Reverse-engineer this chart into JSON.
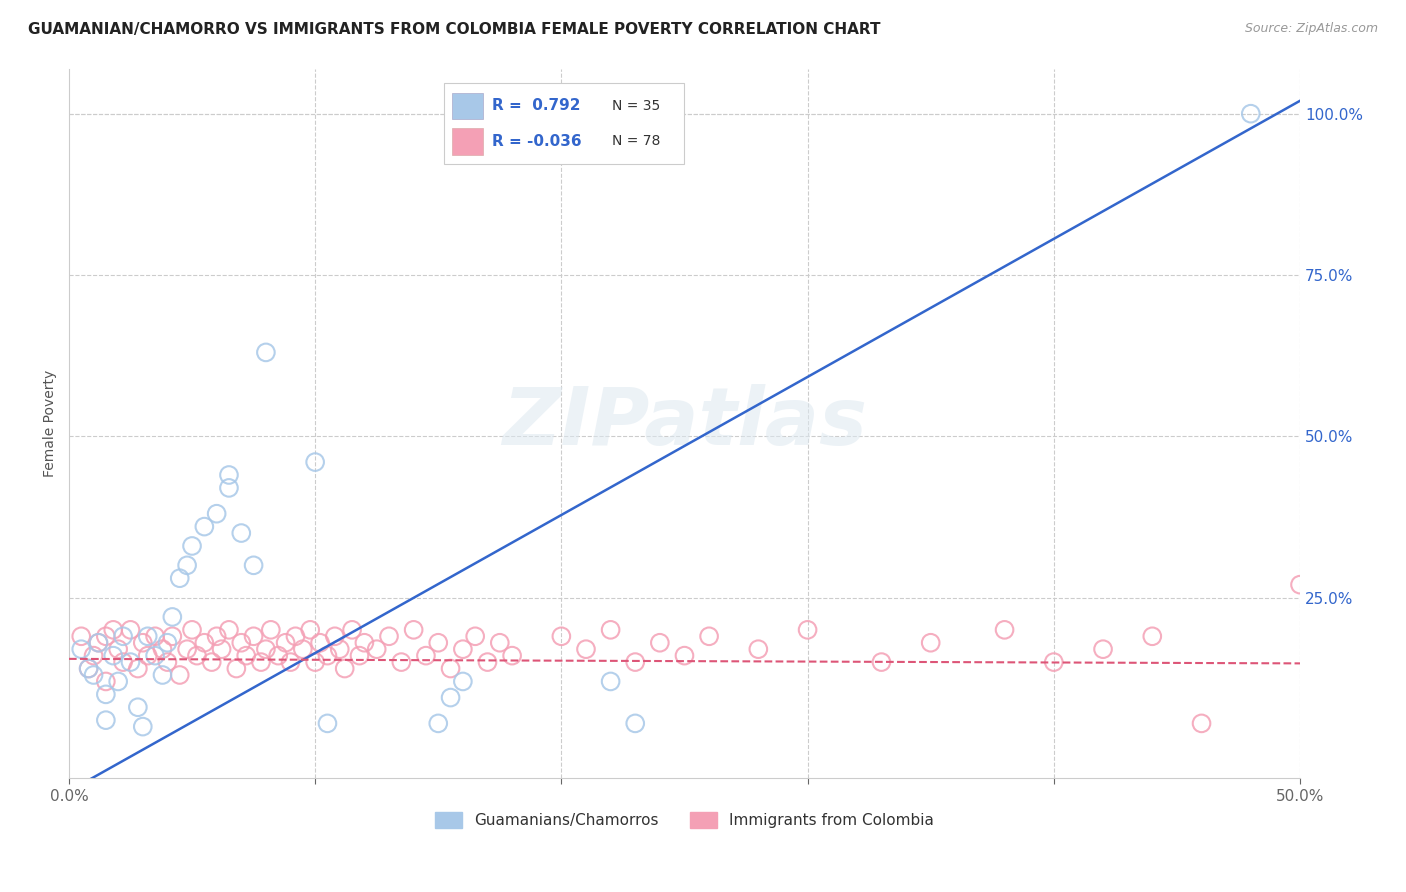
{
  "title": "GUAMANIAN/CHAMORRO VS IMMIGRANTS FROM COLOMBIA FEMALE POVERTY CORRELATION CHART",
  "source": "Source: ZipAtlas.com",
  "ylabel": "Female Poverty",
  "xlim": [
    0.0,
    0.5
  ],
  "ylim": [
    -0.03,
    1.07
  ],
  "grid_color": "#cccccc",
  "watermark": "ZIPatlas",
  "blue_color": "#a8c8e8",
  "pink_color": "#f4a0b5",
  "blue_line_color": "#3366cc",
  "pink_line_color": "#dd5577",
  "label_blue": "Guamanians/Chamorros",
  "label_pink": "Immigrants from Colombia",
  "blue_line_x0": 0.0,
  "blue_line_y0": -0.05,
  "blue_line_x1": 0.5,
  "blue_line_y1": 1.02,
  "pink_line_x0": 0.0,
  "pink_line_y0": 0.155,
  "pink_line_x1": 0.5,
  "pink_line_y1": 0.148,
  "blue_dots": [
    [
      0.005,
      0.17
    ],
    [
      0.008,
      0.14
    ],
    [
      0.01,
      0.13
    ],
    [
      0.012,
      0.18
    ],
    [
      0.015,
      0.1
    ],
    [
      0.015,
      0.06
    ],
    [
      0.018,
      0.16
    ],
    [
      0.02,
      0.12
    ],
    [
      0.022,
      0.19
    ],
    [
      0.025,
      0.15
    ],
    [
      0.028,
      0.08
    ],
    [
      0.03,
      0.05
    ],
    [
      0.032,
      0.19
    ],
    [
      0.035,
      0.16
    ],
    [
      0.038,
      0.13
    ],
    [
      0.04,
      0.18
    ],
    [
      0.042,
      0.22
    ],
    [
      0.045,
      0.28
    ],
    [
      0.048,
      0.3
    ],
    [
      0.05,
      0.33
    ],
    [
      0.055,
      0.36
    ],
    [
      0.06,
      0.38
    ],
    [
      0.065,
      0.42
    ],
    [
      0.065,
      0.44
    ],
    [
      0.07,
      0.35
    ],
    [
      0.075,
      0.3
    ],
    [
      0.08,
      0.63
    ],
    [
      0.1,
      0.46
    ],
    [
      0.105,
      0.055
    ],
    [
      0.15,
      0.055
    ],
    [
      0.155,
      0.095
    ],
    [
      0.16,
      0.12
    ],
    [
      0.22,
      0.12
    ],
    [
      0.23,
      0.055
    ],
    [
      0.48,
      1.0
    ]
  ],
  "pink_dots": [
    [
      0.005,
      0.19
    ],
    [
      0.008,
      0.14
    ],
    [
      0.01,
      0.16
    ],
    [
      0.012,
      0.18
    ],
    [
      0.015,
      0.12
    ],
    [
      0.015,
      0.19
    ],
    [
      0.018,
      0.2
    ],
    [
      0.02,
      0.17
    ],
    [
      0.022,
      0.15
    ],
    [
      0.025,
      0.2
    ],
    [
      0.028,
      0.14
    ],
    [
      0.03,
      0.18
    ],
    [
      0.032,
      0.16
    ],
    [
      0.035,
      0.19
    ],
    [
      0.038,
      0.17
    ],
    [
      0.04,
      0.15
    ],
    [
      0.042,
      0.19
    ],
    [
      0.045,
      0.13
    ],
    [
      0.048,
      0.17
    ],
    [
      0.05,
      0.2
    ],
    [
      0.052,
      0.16
    ],
    [
      0.055,
      0.18
    ],
    [
      0.058,
      0.15
    ],
    [
      0.06,
      0.19
    ],
    [
      0.062,
      0.17
    ],
    [
      0.065,
      0.2
    ],
    [
      0.068,
      0.14
    ],
    [
      0.07,
      0.18
    ],
    [
      0.072,
      0.16
    ],
    [
      0.075,
      0.19
    ],
    [
      0.078,
      0.15
    ],
    [
      0.08,
      0.17
    ],
    [
      0.082,
      0.2
    ],
    [
      0.085,
      0.16
    ],
    [
      0.088,
      0.18
    ],
    [
      0.09,
      0.15
    ],
    [
      0.092,
      0.19
    ],
    [
      0.095,
      0.17
    ],
    [
      0.098,
      0.2
    ],
    [
      0.1,
      0.15
    ],
    [
      0.102,
      0.18
    ],
    [
      0.105,
      0.16
    ],
    [
      0.108,
      0.19
    ],
    [
      0.11,
      0.17
    ],
    [
      0.112,
      0.14
    ],
    [
      0.115,
      0.2
    ],
    [
      0.118,
      0.16
    ],
    [
      0.12,
      0.18
    ],
    [
      0.125,
      0.17
    ],
    [
      0.13,
      0.19
    ],
    [
      0.135,
      0.15
    ],
    [
      0.14,
      0.2
    ],
    [
      0.145,
      0.16
    ],
    [
      0.15,
      0.18
    ],
    [
      0.155,
      0.14
    ],
    [
      0.16,
      0.17
    ],
    [
      0.165,
      0.19
    ],
    [
      0.17,
      0.15
    ],
    [
      0.175,
      0.18
    ],
    [
      0.18,
      0.16
    ],
    [
      0.2,
      0.19
    ],
    [
      0.21,
      0.17
    ],
    [
      0.22,
      0.2
    ],
    [
      0.23,
      0.15
    ],
    [
      0.24,
      0.18
    ],
    [
      0.25,
      0.16
    ],
    [
      0.26,
      0.19
    ],
    [
      0.28,
      0.17
    ],
    [
      0.3,
      0.2
    ],
    [
      0.33,
      0.15
    ],
    [
      0.35,
      0.18
    ],
    [
      0.38,
      0.2
    ],
    [
      0.4,
      0.15
    ],
    [
      0.42,
      0.17
    ],
    [
      0.44,
      0.19
    ],
    [
      0.46,
      0.055
    ],
    [
      0.5,
      0.27
    ]
  ]
}
